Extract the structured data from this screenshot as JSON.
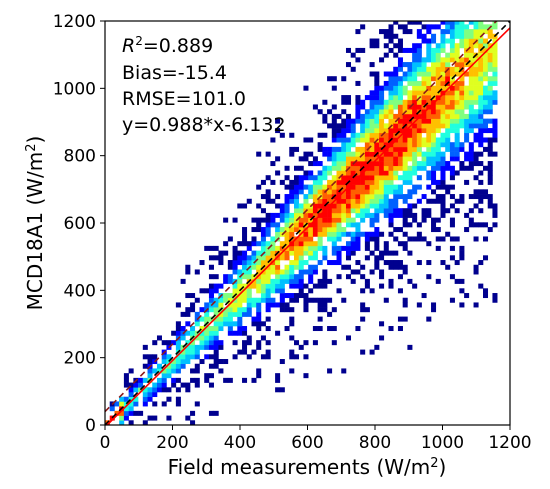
{
  "chart_data": {
    "type": "heatmap",
    "title": "",
    "xlabel": "Field measurements (W/m",
    "xlabel_sup": "2",
    "xlabel_end": ")",
    "ylabel": "MCD18A1 (W/m",
    "ylabel_sup": "2",
    "ylabel_end": ")",
    "xlim": [
      0,
      1200
    ],
    "ylim": [
      0,
      1200
    ],
    "xticks": [
      0,
      200,
      400,
      600,
      800,
      1000,
      1200
    ],
    "yticks": [
      0,
      200,
      400,
      600,
      800,
      1000,
      1200
    ],
    "grid": false,
    "colormap": "jet",
    "annotations": {
      "r2_label": "R",
      "r2_sup": "2",
      "r2_value": "=0.889",
      "bias": "Bias=-15.4",
      "rmse": "RMSE=101.0",
      "equation": "y=0.988*x-6.132"
    },
    "lines": [
      {
        "kind": "one-to-one",
        "style": "dashed",
        "color": "#000000",
        "slope": 1.0,
        "intercept": 0
      },
      {
        "kind": "fit",
        "style": "solid",
        "color": "#ff0000",
        "slope": 0.988,
        "intercept": -6.132
      },
      {
        "kind": "upper-bound",
        "style": "dashed",
        "color": "#8b1a1a",
        "slope": 1.0,
        "intercept": 40
      }
    ],
    "density_model": {
      "x_range": [
        0,
        1160
      ],
      "fit_slope": 0.988,
      "fit_intercept": -6.132,
      "peak_x": 780,
      "colors": [
        "#00008f",
        "#0000ff",
        "#0060ff",
        "#00c0ff",
        "#20ffdf",
        "#80ff80",
        "#dfff20",
        "#ffc000",
        "#ff6000",
        "#ff0000"
      ]
    }
  }
}
